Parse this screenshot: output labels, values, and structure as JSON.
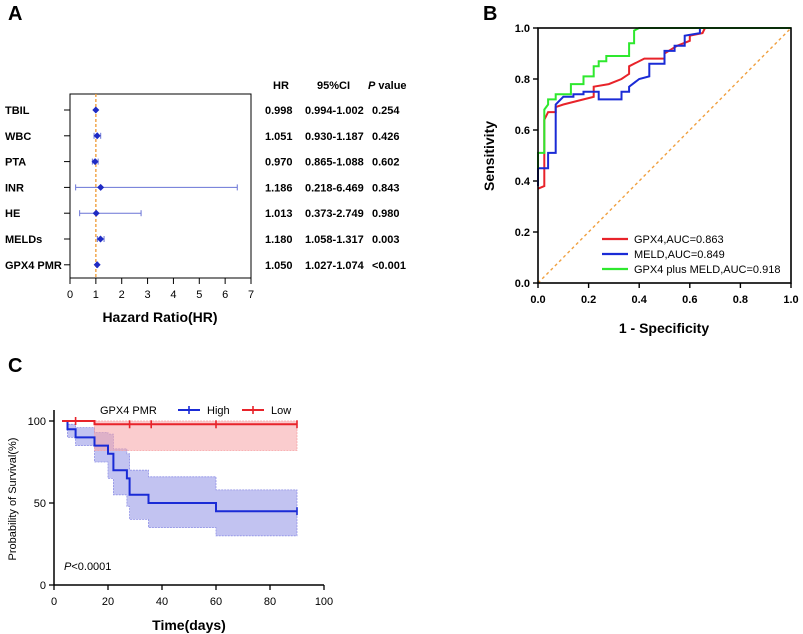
{
  "chart_data": [
    {
      "panel": "A",
      "type": "forest",
      "xlabel": "Hazard Ratio(HR)",
      "xlim": [
        0,
        7
      ],
      "xticks": [
        0,
        1,
        2,
        3,
        4,
        5,
        6,
        7
      ],
      "reference_line": 1,
      "columns": {
        "hr": "HR",
        "ci": "95%CI",
        "p_italic": "P",
        "p_rest": " value"
      },
      "rows": [
        {
          "label": "TBIL",
          "hr": 0.998,
          "lo": 0.994,
          "hi": 1.002,
          "hr_text": "0.998",
          "ci_text": "0.994-1.002",
          "p_text": "0.254"
        },
        {
          "label": "WBC",
          "hr": 1.051,
          "lo": 0.93,
          "hi": 1.187,
          "hr_text": "1.051",
          "ci_text": "0.930-1.187",
          "p_text": "0.426"
        },
        {
          "label": "PTA",
          "hr": 0.97,
          "lo": 0.865,
          "hi": 1.088,
          "hr_text": "0.970",
          "ci_text": "0.865-1.088",
          "p_text": "0.602"
        },
        {
          "label": "INR",
          "hr": 1.186,
          "lo": 0.218,
          "hi": 6.469,
          "hr_text": "1.186",
          "ci_text": "0.218-6.469",
          "p_text": "0.843"
        },
        {
          "label": "HE",
          "hr": 1.013,
          "lo": 0.373,
          "hi": 2.749,
          "hr_text": "1.013",
          "ci_text": "0.373-2.749",
          "p_text": "0.980"
        },
        {
          "label": "MELDs",
          "hr": 1.18,
          "lo": 1.058,
          "hi": 1.317,
          "hr_text": "1.180",
          "ci_text": "1.058-1.317",
          "p_text": "0.003"
        },
        {
          "label": "GPX4 PMR",
          "hr": 1.05,
          "lo": 1.027,
          "hi": 1.074,
          "hr_text": "1.050",
          "ci_text": "1.027-1.074",
          "p_text": "<0.001"
        }
      ],
      "colors": {
        "point": "#1f2bc4",
        "ci": "#6a74d6",
        "ref": "#f0a040"
      }
    },
    {
      "panel": "B",
      "type": "line",
      "title": "",
      "xlabel": "1 - Specificity",
      "ylabel": "Sensitivity",
      "xlim": [
        0,
        1
      ],
      "ylim": [
        0,
        1
      ],
      "xticks": [
        "0.0",
        "0.2",
        "0.4",
        "0.6",
        "0.8",
        "1.0"
      ],
      "yticks": [
        "0.0",
        "0.2",
        "0.4",
        "0.6",
        "0.8",
        "1.0"
      ],
      "legend_position": "bottom-right",
      "series": [
        {
          "name": "GPX4,AUC=0.863",
          "color": "#e8232a",
          "points": [
            [
              0,
              0.37
            ],
            [
              0.025,
              0.38
            ],
            [
              0.025,
              0.64
            ],
            [
              0.04,
              0.67
            ],
            [
              0.07,
              0.67
            ],
            [
              0.07,
              0.69
            ],
            [
              0.1,
              0.7
            ],
            [
              0.18,
              0.72
            ],
            [
              0.22,
              0.73
            ],
            [
              0.22,
              0.77
            ],
            [
              0.28,
              0.78
            ],
            [
              0.33,
              0.8
            ],
            [
              0.36,
              0.82
            ],
            [
              0.36,
              0.85
            ],
            [
              0.42,
              0.88
            ],
            [
              0.5,
              0.88
            ],
            [
              0.5,
              0.9
            ],
            [
              0.55,
              0.93
            ],
            [
              0.6,
              0.95
            ],
            [
              0.6,
              0.97
            ],
            [
              0.65,
              0.98
            ],
            [
              0.66,
              1.0
            ],
            [
              1.0,
              1.0
            ]
          ]
        },
        {
          "name": "MELD,AUC=0.849",
          "color": "#1a2bd6",
          "points": [
            [
              0,
              0.38
            ],
            [
              0,
              0.45
            ],
            [
              0.04,
              0.45
            ],
            [
              0.04,
              0.51
            ],
            [
              0.07,
              0.51
            ],
            [
              0.07,
              0.7
            ],
            [
              0.1,
              0.73
            ],
            [
              0.14,
              0.73
            ],
            [
              0.14,
              0.74
            ],
            [
              0.18,
              0.74
            ],
            [
              0.18,
              0.75
            ],
            [
              0.24,
              0.75
            ],
            [
              0.24,
              0.72
            ],
            [
              0.33,
              0.72
            ],
            [
              0.33,
              0.75
            ],
            [
              0.36,
              0.75
            ],
            [
              0.36,
              0.77
            ],
            [
              0.4,
              0.8
            ],
            [
              0.44,
              0.81
            ],
            [
              0.44,
              0.86
            ],
            [
              0.5,
              0.86
            ],
            [
              0.5,
              0.91
            ],
            [
              0.54,
              0.91
            ],
            [
              0.54,
              0.93
            ],
            [
              0.58,
              0.93
            ],
            [
              0.58,
              0.97
            ],
            [
              0.64,
              0.98
            ],
            [
              0.64,
              1.0
            ],
            [
              1.0,
              1.0
            ]
          ]
        },
        {
          "name": "GPX4 plus MELD,AUC=0.918",
          "color": "#2ee82e",
          "points": [
            [
              0,
              0.45
            ],
            [
              0,
              0.51
            ],
            [
              0.025,
              0.51
            ],
            [
              0.025,
              0.68
            ],
            [
              0.04,
              0.7
            ],
            [
              0.04,
              0.72
            ],
            [
              0.07,
              0.72
            ],
            [
              0.07,
              0.74
            ],
            [
              0.13,
              0.74
            ],
            [
              0.13,
              0.78
            ],
            [
              0.18,
              0.78
            ],
            [
              0.18,
              0.81
            ],
            [
              0.22,
              0.81
            ],
            [
              0.22,
              0.85
            ],
            [
              0.24,
              0.85
            ],
            [
              0.24,
              0.87
            ],
            [
              0.27,
              0.87
            ],
            [
              0.27,
              0.89
            ],
            [
              0.36,
              0.89
            ],
            [
              0.36,
              0.94
            ],
            [
              0.38,
              0.94
            ],
            [
              0.38,
              0.99
            ],
            [
              0.4,
              1.0
            ],
            [
              1.0,
              1.0
            ]
          ]
        }
      ],
      "diagonal_color": "#f0a040"
    },
    {
      "panel": "C",
      "type": "line",
      "subtype": "kaplan-meier",
      "xlabel": "Time(days)",
      "ylabel": "Probability of Survival(%)",
      "xlim": [
        0,
        100
      ],
      "ylim": [
        0,
        100
      ],
      "xticks": [
        "0",
        "20",
        "40",
        "60",
        "80",
        "100"
      ],
      "yticks": [
        "0",
        "50",
        "100"
      ],
      "legend_title": "GPX4 PMR",
      "annotation_italic": "P",
      "annotation_rest": "<0.0001",
      "series": [
        {
          "name": "High",
          "color": "#1a2bd6",
          "band_color": "#8f91e6",
          "steps": [
            [
              3,
              100
            ],
            [
              5,
              95
            ],
            [
              8,
              90
            ],
            [
              15,
              85
            ],
            [
              20,
              80
            ],
            [
              22,
              70
            ],
            [
              27,
              65
            ],
            [
              28,
              55
            ],
            [
              35,
              50
            ],
            [
              60,
              45
            ],
            [
              90,
              45
            ]
          ],
          "lower": [
            [
              3,
              100
            ],
            [
              5,
              90
            ],
            [
              8,
              85
            ],
            [
              15,
              75
            ],
            [
              20,
              65
            ],
            [
              22,
              55
            ],
            [
              27,
              48
            ],
            [
              28,
              40
            ],
            [
              35,
              35
            ],
            [
              60,
              30
            ],
            [
              90,
              30
            ]
          ],
          "upper": [
            [
              3,
              100
            ],
            [
              5,
              98
            ],
            [
              8,
              96
            ],
            [
              15,
              93
            ],
            [
              20,
              92
            ],
            [
              22,
              83
            ],
            [
              27,
              80
            ],
            [
              28,
              70
            ],
            [
              35,
              66
            ],
            [
              60,
              58
            ],
            [
              90,
              58
            ]
          ],
          "censors": [
            [
              90,
              45
            ]
          ]
        },
        {
          "name": "Low",
          "color": "#e8232a",
          "band_color": "#f6a3a5",
          "steps": [
            [
              3,
              100
            ],
            [
              15,
              98
            ],
            [
              90,
              98
            ]
          ],
          "lower": [
            [
              3,
              100
            ],
            [
              15,
              82
            ],
            [
              90,
              82
            ]
          ],
          "upper": [
            [
              3,
              100
            ],
            [
              15,
              100
            ],
            [
              90,
              100
            ]
          ],
          "censors": [
            [
              8,
              100
            ],
            [
              28,
              98
            ],
            [
              36,
              98
            ],
            [
              60,
              98
            ],
            [
              90,
              98
            ]
          ]
        }
      ]
    }
  ],
  "panels": {
    "a": "A",
    "b": "B",
    "c": "C"
  }
}
